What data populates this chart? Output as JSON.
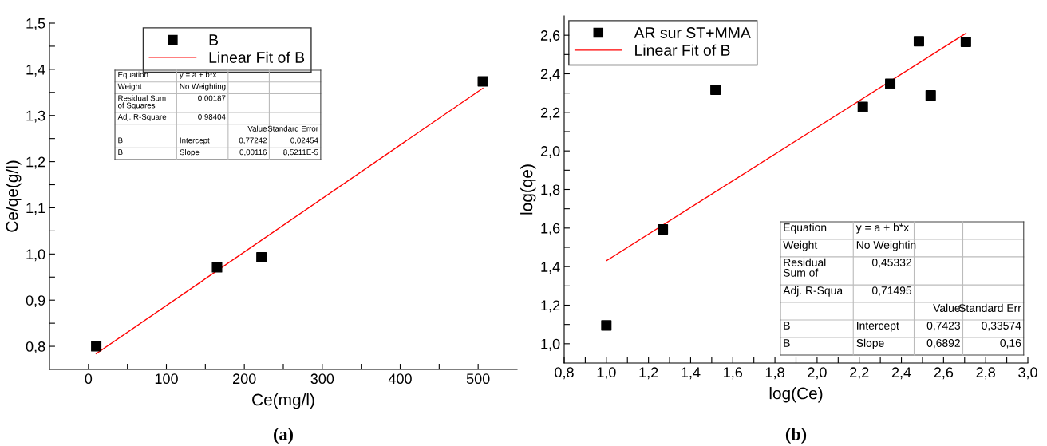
{
  "chart_data": [
    {
      "type": "scatter",
      "xlabel": "Ce(mg/l)",
      "ylabel": "Ce/qe(g/l)",
      "legend": "top",
      "xlim": [
        -50,
        550
      ],
      "ylim": [
        0.75,
        1.5
      ],
      "xticks": [
        0,
        {
          "value": 50,
          "label": null
        },
        100,
        {
          "value": 150,
          "label": null
        },
        200,
        {
          "value": 250,
          "label": null
        },
        300,
        {
          "value": 350,
          "label": null
        },
        400,
        {
          "value": 450,
          "label": null
        },
        500
      ],
      "yticks": [
        {
          "value": 0.8,
          "label": "0,8"
        },
        {
          "value": 0.85,
          "label": null
        },
        {
          "value": 0.9,
          "label": "0,9"
        },
        {
          "value": 0.95,
          "label": null
        },
        {
          "value": 1.0,
          "label": "1,0"
        },
        {
          "value": 1.05,
          "label": null
        },
        {
          "value": 1.1,
          "label": "1,1"
        },
        {
          "value": 1.15,
          "label": null
        },
        {
          "value": 1.2,
          "label": "1,2"
        },
        {
          "value": 1.25,
          "label": null
        },
        {
          "value": 1.3,
          "label": "1,3"
        },
        {
          "value": 1.35,
          "label": null
        },
        {
          "value": 1.4,
          "label": "1,4"
        },
        {
          "value": 1.45,
          "label": null
        },
        {
          "value": 1.5,
          "label": "1,5"
        }
      ],
      "series": [
        {
          "name": "B",
          "marker": "square",
          "color": "#000000",
          "x": [
            10,
            165,
            222,
            506
          ],
          "values": [
            0.8,
            0.971,
            0.993,
            1.374
          ]
        },
        {
          "name": "Linear Fit of B",
          "type": "line",
          "line_style": "solid",
          "color": "#ff0000",
          "x": [
            10,
            506
          ],
          "values": [
            0.784,
            1.359
          ]
        }
      ],
      "annotations": [
        "(a)",
        "Equation",
        "y = a + b*x",
        null,
        null,
        "Weight",
        "No Weighting",
        null,
        null,
        "Residual Sum\nof Squares",
        "0,00187",
        null,
        null,
        "Adj. R-Square",
        "0,98404",
        null,
        null,
        null,
        null,
        "Value",
        "Standard Error",
        "B",
        "Intercept",
        "0,77242",
        "0,02454",
        "B",
        "Slope",
        "0,00116",
        "8,5211E-5"
      ]
    },
    {
      "type": "scatter",
      "xlabel": "log(Ce)",
      "ylabel": "log(qe)",
      "legend": "top left",
      "xlim": [
        0.8,
        3.0
      ],
      "ylim": [
        0.9,
        2.7
      ],
      "xticks": [
        {
          "value": 0.8,
          "label": "0,8"
        },
        {
          "value": 0.9,
          "label": null
        },
        {
          "value": 1.0,
          "label": "1,0"
        },
        {
          "value": 1.1,
          "label": null
        },
        {
          "value": 1.2,
          "label": "1,2"
        },
        {
          "value": 1.3,
          "label": null
        },
        {
          "value": 1.4,
          "label": "1,4"
        },
        {
          "value": 1.5,
          "label": null
        },
        {
          "value": 1.6,
          "label": "1,6"
        },
        {
          "value": 1.7,
          "label": null
        },
        {
          "value": 1.8,
          "label": "1,8"
        },
        {
          "value": 1.9,
          "label": null
        },
        {
          "value": 2.0,
          "label": "2,0"
        },
        {
          "value": 2.1,
          "label": null
        },
        {
          "value": 2.2,
          "label": "2,2"
        },
        {
          "value": 2.3,
          "label": null
        },
        {
          "value": 2.4,
          "label": "2,4"
        },
        {
          "value": 2.5,
          "label": null
        },
        {
          "value": 2.6,
          "label": "2,6"
        },
        {
          "value": 2.7,
          "label": null
        },
        {
          "value": 2.8,
          "label": "2,8"
        },
        {
          "value": 2.9,
          "label": null
        },
        {
          "value": 3.0,
          "label": "3,0"
        }
      ],
      "yticks": [
        {
          "value": 1.0,
          "label": "1,0"
        },
        {
          "value": 1.1,
          "label": null
        },
        {
          "value": 1.2,
          "label": "1,2"
        },
        {
          "value": 1.3,
          "label": null
        },
        {
          "value": 1.4,
          "label": "1,4"
        },
        {
          "value": 1.5,
          "label": null
        },
        {
          "value": 1.6,
          "label": "1,6"
        },
        {
          "value": 1.7,
          "label": null
        },
        {
          "value": 1.8,
          "label": "1,8"
        },
        {
          "value": 1.9,
          "label": null
        },
        {
          "value": 2.0,
          "label": "2,0"
        },
        {
          "value": 2.1,
          "label": null
        },
        {
          "value": 2.2,
          "label": "2,2"
        },
        {
          "value": 2.3,
          "label": null
        },
        {
          "value": 2.4,
          "label": "2,4"
        },
        {
          "value": 2.5,
          "label": null
        },
        {
          "value": 2.6,
          "label": "2,6"
        }
      ],
      "series": [
        {
          "name": "AR sur ST+MMA",
          "marker": "square",
          "color": "#000000",
          "x": [
            1.0,
            1.268,
            1.518,
            2.217,
            2.347,
            2.483,
            2.539,
            2.706
          ],
          "values": [
            1.095,
            1.593,
            2.317,
            2.228,
            2.348,
            2.569,
            2.288,
            2.566
          ]
        },
        {
          "name": "Linear Fit of B",
          "type": "line",
          "line_style": "solid",
          "color": "#ff0000",
          "x": [
            1.0,
            2.706
          ],
          "values": [
            1.43,
            2.61
          ]
        }
      ],
      "annotations": [
        "(b)",
        "Equation",
        "y = a + b*x",
        null,
        null,
        "Weight",
        "No Weightin",
        null,
        null,
        "Residual\nSum of",
        "0,45332",
        null,
        null,
        "Adj. R-Squa",
        "0,71495",
        null,
        null,
        null,
        null,
        "Value",
        "Standard Err",
        "B",
        "Intercept",
        "0,7423",
        "0,33574",
        "B",
        "Slope",
        "0,6892",
        "0,16"
      ]
    }
  ]
}
